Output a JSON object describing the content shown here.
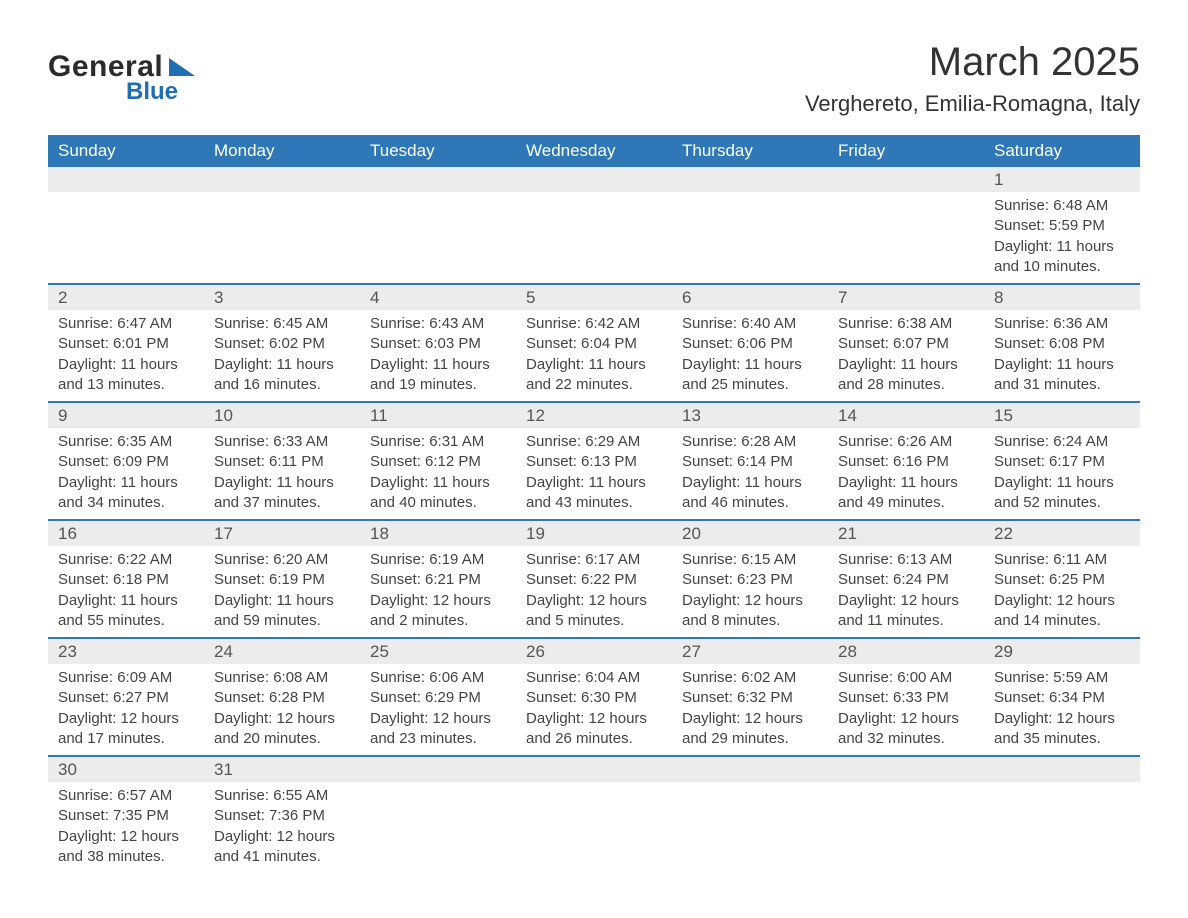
{
  "logo": {
    "word1": "General",
    "word2": "Blue"
  },
  "title": "March 2025",
  "location": "Verghereto, Emilia-Romagna, Italy",
  "colors": {
    "header_bg": "#2f78b7",
    "header_text": "#ffffff",
    "daynum_bg": "#ececec",
    "body_text": "#444444",
    "rule": "#2f78b7",
    "logo_accent": "#1f6fb2"
  },
  "fonts": {
    "title_size_pt": 30,
    "location_size_pt": 16,
    "header_size_pt": 13,
    "daynum_size_pt": 13,
    "detail_size_pt": 11
  },
  "dayHeaders": [
    "Sunday",
    "Monday",
    "Tuesday",
    "Wednesday",
    "Thursday",
    "Friday",
    "Saturday"
  ],
  "weeks": [
    [
      null,
      null,
      null,
      null,
      null,
      null,
      {
        "n": "1",
        "sunrise": "Sunrise: 6:48 AM",
        "sunset": "Sunset: 5:59 PM",
        "d1": "Daylight: 11 hours",
        "d2": "and 10 minutes."
      }
    ],
    [
      {
        "n": "2",
        "sunrise": "Sunrise: 6:47 AM",
        "sunset": "Sunset: 6:01 PM",
        "d1": "Daylight: 11 hours",
        "d2": "and 13 minutes."
      },
      {
        "n": "3",
        "sunrise": "Sunrise: 6:45 AM",
        "sunset": "Sunset: 6:02 PM",
        "d1": "Daylight: 11 hours",
        "d2": "and 16 minutes."
      },
      {
        "n": "4",
        "sunrise": "Sunrise: 6:43 AM",
        "sunset": "Sunset: 6:03 PM",
        "d1": "Daylight: 11 hours",
        "d2": "and 19 minutes."
      },
      {
        "n": "5",
        "sunrise": "Sunrise: 6:42 AM",
        "sunset": "Sunset: 6:04 PM",
        "d1": "Daylight: 11 hours",
        "d2": "and 22 minutes."
      },
      {
        "n": "6",
        "sunrise": "Sunrise: 6:40 AM",
        "sunset": "Sunset: 6:06 PM",
        "d1": "Daylight: 11 hours",
        "d2": "and 25 minutes."
      },
      {
        "n": "7",
        "sunrise": "Sunrise: 6:38 AM",
        "sunset": "Sunset: 6:07 PM",
        "d1": "Daylight: 11 hours",
        "d2": "and 28 minutes."
      },
      {
        "n": "8",
        "sunrise": "Sunrise: 6:36 AM",
        "sunset": "Sunset: 6:08 PM",
        "d1": "Daylight: 11 hours",
        "d2": "and 31 minutes."
      }
    ],
    [
      {
        "n": "9",
        "sunrise": "Sunrise: 6:35 AM",
        "sunset": "Sunset: 6:09 PM",
        "d1": "Daylight: 11 hours",
        "d2": "and 34 minutes."
      },
      {
        "n": "10",
        "sunrise": "Sunrise: 6:33 AM",
        "sunset": "Sunset: 6:11 PM",
        "d1": "Daylight: 11 hours",
        "d2": "and 37 minutes."
      },
      {
        "n": "11",
        "sunrise": "Sunrise: 6:31 AM",
        "sunset": "Sunset: 6:12 PM",
        "d1": "Daylight: 11 hours",
        "d2": "and 40 minutes."
      },
      {
        "n": "12",
        "sunrise": "Sunrise: 6:29 AM",
        "sunset": "Sunset: 6:13 PM",
        "d1": "Daylight: 11 hours",
        "d2": "and 43 minutes."
      },
      {
        "n": "13",
        "sunrise": "Sunrise: 6:28 AM",
        "sunset": "Sunset: 6:14 PM",
        "d1": "Daylight: 11 hours",
        "d2": "and 46 minutes."
      },
      {
        "n": "14",
        "sunrise": "Sunrise: 6:26 AM",
        "sunset": "Sunset: 6:16 PM",
        "d1": "Daylight: 11 hours",
        "d2": "and 49 minutes."
      },
      {
        "n": "15",
        "sunrise": "Sunrise: 6:24 AM",
        "sunset": "Sunset: 6:17 PM",
        "d1": "Daylight: 11 hours",
        "d2": "and 52 minutes."
      }
    ],
    [
      {
        "n": "16",
        "sunrise": "Sunrise: 6:22 AM",
        "sunset": "Sunset: 6:18 PM",
        "d1": "Daylight: 11 hours",
        "d2": "and 55 minutes."
      },
      {
        "n": "17",
        "sunrise": "Sunrise: 6:20 AM",
        "sunset": "Sunset: 6:19 PM",
        "d1": "Daylight: 11 hours",
        "d2": "and 59 minutes."
      },
      {
        "n": "18",
        "sunrise": "Sunrise: 6:19 AM",
        "sunset": "Sunset: 6:21 PM",
        "d1": "Daylight: 12 hours",
        "d2": "and 2 minutes."
      },
      {
        "n": "19",
        "sunrise": "Sunrise: 6:17 AM",
        "sunset": "Sunset: 6:22 PM",
        "d1": "Daylight: 12 hours",
        "d2": "and 5 minutes."
      },
      {
        "n": "20",
        "sunrise": "Sunrise: 6:15 AM",
        "sunset": "Sunset: 6:23 PM",
        "d1": "Daylight: 12 hours",
        "d2": "and 8 minutes."
      },
      {
        "n": "21",
        "sunrise": "Sunrise: 6:13 AM",
        "sunset": "Sunset: 6:24 PM",
        "d1": "Daylight: 12 hours",
        "d2": "and 11 minutes."
      },
      {
        "n": "22",
        "sunrise": "Sunrise: 6:11 AM",
        "sunset": "Sunset: 6:25 PM",
        "d1": "Daylight: 12 hours",
        "d2": "and 14 minutes."
      }
    ],
    [
      {
        "n": "23",
        "sunrise": "Sunrise: 6:09 AM",
        "sunset": "Sunset: 6:27 PM",
        "d1": "Daylight: 12 hours",
        "d2": "and 17 minutes."
      },
      {
        "n": "24",
        "sunrise": "Sunrise: 6:08 AM",
        "sunset": "Sunset: 6:28 PM",
        "d1": "Daylight: 12 hours",
        "d2": "and 20 minutes."
      },
      {
        "n": "25",
        "sunrise": "Sunrise: 6:06 AM",
        "sunset": "Sunset: 6:29 PM",
        "d1": "Daylight: 12 hours",
        "d2": "and 23 minutes."
      },
      {
        "n": "26",
        "sunrise": "Sunrise: 6:04 AM",
        "sunset": "Sunset: 6:30 PM",
        "d1": "Daylight: 12 hours",
        "d2": "and 26 minutes."
      },
      {
        "n": "27",
        "sunrise": "Sunrise: 6:02 AM",
        "sunset": "Sunset: 6:32 PM",
        "d1": "Daylight: 12 hours",
        "d2": "and 29 minutes."
      },
      {
        "n": "28",
        "sunrise": "Sunrise: 6:00 AM",
        "sunset": "Sunset: 6:33 PM",
        "d1": "Daylight: 12 hours",
        "d2": "and 32 minutes."
      },
      {
        "n": "29",
        "sunrise": "Sunrise: 5:59 AM",
        "sunset": "Sunset: 6:34 PM",
        "d1": "Daylight: 12 hours",
        "d2": "and 35 minutes."
      }
    ],
    [
      {
        "n": "30",
        "sunrise": "Sunrise: 6:57 AM",
        "sunset": "Sunset: 7:35 PM",
        "d1": "Daylight: 12 hours",
        "d2": "and 38 minutes."
      },
      {
        "n": "31",
        "sunrise": "Sunrise: 6:55 AM",
        "sunset": "Sunset: 7:36 PM",
        "d1": "Daylight: 12 hours",
        "d2": "and 41 minutes."
      },
      null,
      null,
      null,
      null,
      null
    ]
  ]
}
